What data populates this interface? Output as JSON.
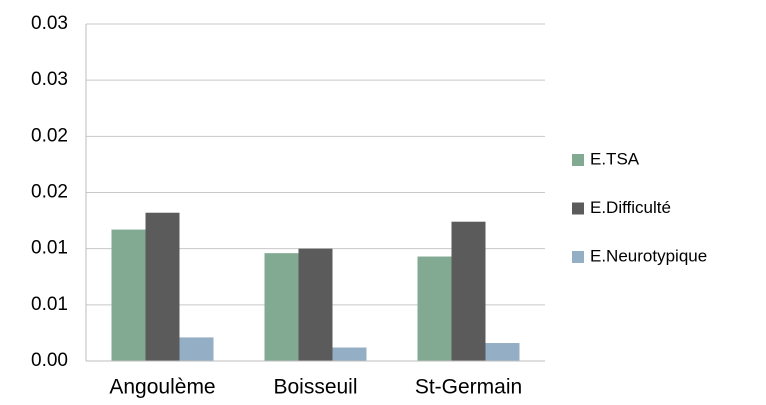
{
  "chart_data": {
    "type": "bar",
    "categories": [
      "Angoulème",
      "Boisseuil",
      "St-Germain"
    ],
    "series": [
      {
        "name": "E.TSA",
        "color": "#82aa92",
        "values": [
          0.0117,
          0.0096,
          0.0093
        ]
      },
      {
        "name": "E.Difficulté",
        "color": "#5b5b5b",
        "values": [
          0.0132,
          0.01,
          0.0124
        ]
      },
      {
        "name": "E.Neurotypique",
        "color": "#94afc5",
        "values": [
          0.0021,
          0.0012,
          0.0016
        ]
      }
    ],
    "ylim": [
      0,
      0.03
    ],
    "yticks": [
      {
        "value": 0,
        "label": "0.00"
      },
      {
        "value": 0.005,
        "label": "0.01"
      },
      {
        "value": 0.01,
        "label": "0.01"
      },
      {
        "value": 0.015,
        "label": "0.02"
      },
      {
        "value": 0.02,
        "label": "0.02"
      },
      {
        "value": 0.025,
        "label": "0.03"
      },
      {
        "value": 0.03,
        "label": "0.03"
      }
    ],
    "grid": true,
    "legend": "right"
  }
}
